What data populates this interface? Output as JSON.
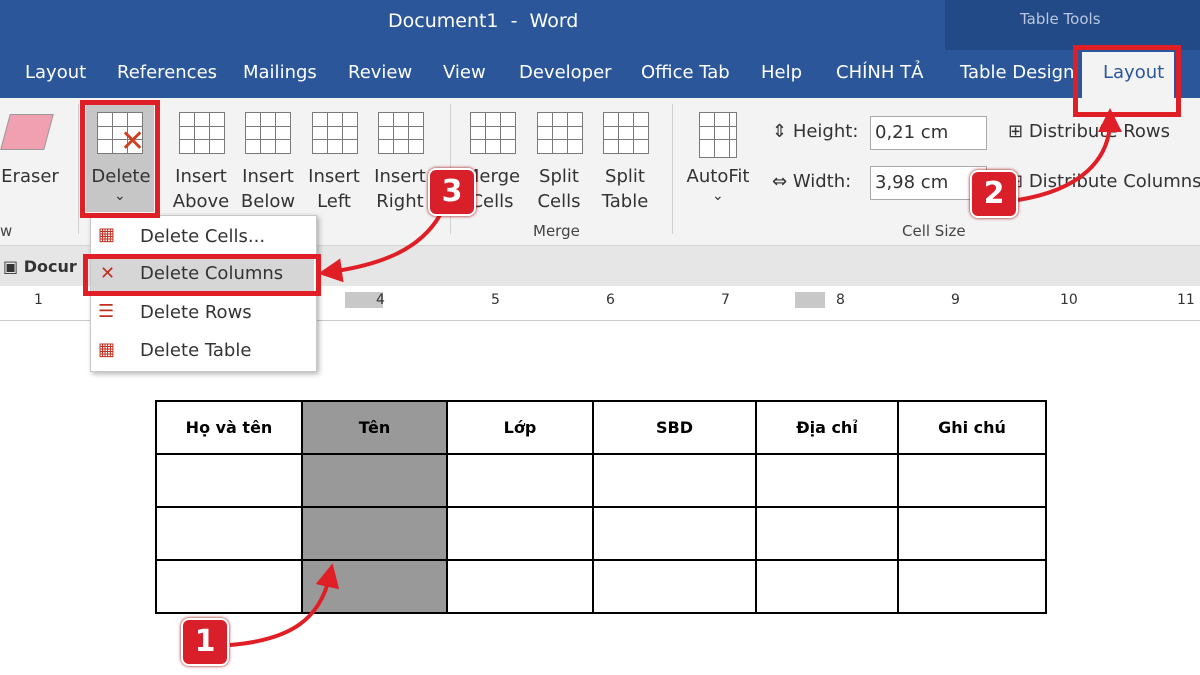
{
  "window": {
    "title": "Document1  -  Word",
    "context_title": "Table Tools"
  },
  "tabs": [
    "Layout",
    "References",
    "Mailings",
    "Review",
    "View",
    "Developer",
    "Office Tab",
    "Help",
    "CHÍNH TẢ",
    "Table Design",
    "Layout"
  ],
  "ribbon": {
    "buttons": [
      "Eraser",
      "Delete",
      "Insert\nAbove",
      "Insert\nBelow",
      "Insert\nLeft",
      "Insert\nRight",
      "Merge\nCells",
      "Split\nCells",
      "Split\nTable",
      "AutoFit"
    ],
    "height_label": "Height:",
    "height_value": "0,21 cm",
    "width_label": "Width:",
    "width_value": "3,98 cm",
    "distribute_rows": "Distribute Rows",
    "distribute_columns": "Distribute Columns",
    "groups": [
      "w",
      "Merge",
      "Cell Size"
    ]
  },
  "doc_tab": "Docur",
  "menu": [
    "Delete Cells...",
    "Delete Columns",
    "Delete Rows",
    "Delete Table"
  ],
  "ruler": [
    "1",
    "4",
    "5",
    "6",
    "7",
    "8",
    "9",
    "10",
    "11"
  ],
  "table": {
    "header": [
      "Họ và tên",
      "Tên",
      "Lớp",
      "SBD",
      "Địa chỉ",
      "Ghi chú"
    ]
  },
  "badges": [
    "1",
    "2",
    "3"
  ]
}
